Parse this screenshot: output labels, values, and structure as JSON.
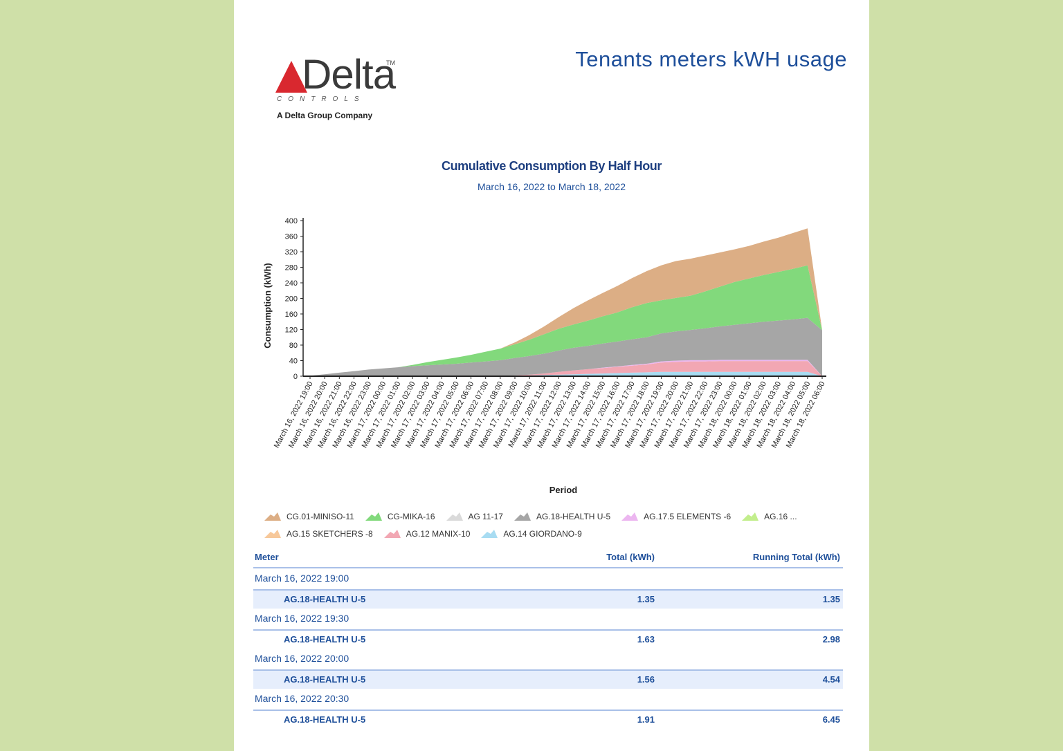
{
  "report": {
    "title": "Tenants meters kWH usage",
    "logo": {
      "word": "Delta",
      "tm": "TM",
      "sub": "CONTROLS",
      "company": "A Delta Group Company",
      "triangle_color": "#d9282f"
    }
  },
  "chart_data": {
    "type": "area",
    "stacked": true,
    "title": "Cumulative Consumption By Half Hour",
    "subtitle": "March 16, 2022 to March 18, 2022",
    "xlabel": "Period",
    "ylabel": "Consumption (kWh)",
    "ylim": [
      0,
      400
    ],
    "yticks": [
      "400",
      "360",
      "320",
      "280",
      "240",
      "200",
      "160",
      "120",
      "80",
      "40",
      "0"
    ],
    "categories": [
      "March 16, 2022 19:00",
      "March 16, 2022 20:00",
      "March 16, 2022 21:00",
      "March 16, 2022 22:00",
      "March 16, 2022 23:00",
      "March 17, 2022 00:00",
      "March 17, 2022 01:00",
      "March 17, 2022 02:00",
      "March 17, 2022 03:00",
      "March 17, 2022 04:00",
      "March 17, 2022 05:00",
      "March 17, 2022 06:00",
      "March 17, 2022 07:00",
      "March 17, 2022 08:00",
      "March 17, 2022 09:00",
      "March 17, 2022 10:00",
      "March 17, 2022 11:00",
      "March 17, 2022 12:00",
      "March 17, 2022 13:00",
      "March 17, 2022 14:00",
      "March 17, 2022 15:00",
      "March 17, 2022 16:00",
      "March 17, 2022 17:00",
      "March 17, 2022 18:00",
      "March 17, 2022 19:00",
      "March 17, 2022 20:00",
      "March 17, 2022 21:00",
      "March 17, 2022 22:00",
      "March 17, 2022 23:00",
      "March 18, 2022 00:00",
      "March 18, 2022 01:00",
      "March 18, 2022 02:00",
      "March 18, 2022 03:00",
      "March 18, 2022 04:00",
      "March 18, 2022 05:00",
      "March 18, 2022 06:00"
    ],
    "series": [
      {
        "name": "AG.14 GIORDANO-9",
        "color": "#a8dcf2",
        "values": [
          0,
          0,
          0,
          0,
          0,
          0,
          0,
          0,
          0,
          0,
          0,
          0,
          0,
          1,
          1,
          2,
          3,
          4,
          5,
          6,
          7,
          8,
          9,
          10,
          11,
          11,
          11,
          11,
          11,
          11,
          11,
          11,
          11,
          11,
          11,
          0
        ]
      },
      {
        "name": "AG.12 MANIX-10",
        "color": "#f2a7b3",
        "values": [
          0,
          0,
          0,
          0,
          0,
          0,
          0,
          0,
          0,
          0,
          0,
          0,
          0,
          0,
          1,
          2,
          4,
          7,
          10,
          12,
          14,
          16,
          18,
          20,
          24,
          26,
          27,
          27,
          28,
          28,
          28,
          28,
          28,
          28,
          28,
          0
        ]
      },
      {
        "name": "AG.15 SKETCHERS -8",
        "color": "#f7c89a",
        "values": [
          0,
          0,
          0,
          0,
          0,
          0,
          0,
          0,
          0,
          0,
          0,
          0,
          0,
          0,
          0,
          0,
          0,
          0,
          0,
          0,
          0,
          0,
          0,
          0,
          0,
          0,
          0,
          0,
          0,
          0,
          0,
          0,
          0,
          0,
          0,
          0
        ]
      },
      {
        "name": "AG.16 ...",
        "color": "#c2ee8c",
        "values": [
          0,
          0,
          0,
          0,
          0,
          0,
          0,
          0,
          0,
          0,
          0,
          0,
          0,
          0,
          0,
          0,
          0,
          0,
          0,
          0,
          0,
          0,
          0,
          0,
          0,
          0,
          0,
          0,
          0,
          0,
          0,
          0,
          0,
          0,
          0,
          0
        ]
      },
      {
        "name": "AG.17.5 ELEMENTS -6",
        "color": "#ecb6f0",
        "values": [
          0,
          0,
          0,
          0,
          0,
          0,
          0,
          0,
          0,
          0,
          0,
          0,
          0,
          0,
          0,
          0,
          0,
          0,
          0,
          0,
          1,
          1,
          2,
          2,
          3,
          3,
          3,
          3,
          3,
          3,
          3,
          3,
          3,
          3,
          3,
          0
        ]
      },
      {
        "name": "AG.18-HEALTH U-5",
        "color": "#a6a6a6",
        "values": [
          1,
          5,
          9,
          13,
          17,
          20,
          23,
          26,
          28,
          30,
          32,
          35,
          38,
          40,
          45,
          48,
          51,
          55,
          58,
          60,
          62,
          64,
          66,
          68,
          72,
          75,
          78,
          82,
          86,
          90,
          94,
          98,
          101,
          104,
          108,
          118
        ]
      },
      {
        "name": "AG 11-17",
        "color": "#dadada",
        "values": [
          0,
          0,
          0,
          0,
          0,
          0,
          0,
          0,
          0,
          0,
          0,
          0,
          0,
          0,
          0,
          0,
          0,
          0,
          0,
          0,
          0,
          0,
          0,
          0,
          0,
          0,
          0,
          0,
          0,
          0,
          0,
          0,
          0,
          0,
          0,
          0
        ]
      },
      {
        "name": "CG-MIKA-16",
        "color": "#82d97c",
        "values": [
          0,
          0,
          0,
          0,
          0,
          0,
          0,
          3,
          8,
          12,
          16,
          20,
          25,
          30,
          35,
          42,
          50,
          56,
          60,
          65,
          70,
          75,
          82,
          88,
          85,
          86,
          88,
          95,
          102,
          110,
          115,
          120,
          125,
          130,
          135,
          0
        ]
      },
      {
        "name": "CG.01-MINISO-11",
        "color": "#dcae85",
        "values": [
          0,
          0,
          0,
          0,
          0,
          0,
          0,
          0,
          0,
          0,
          0,
          0,
          0,
          0,
          5,
          12,
          20,
          30,
          42,
          52,
          60,
          68,
          75,
          82,
          90,
          95,
          95,
          92,
          88,
          84,
          84,
          86,
          88,
          92,
          95,
          0
        ]
      }
    ],
    "legend_rows": [
      [
        "CG.01-MINISO-11",
        "CG-MIKA-16",
        "AG 11-17",
        "AG.18-HEALTH U-5",
        "AG.17.5 ELEMENTS -6",
        "AG.16 ..."
      ],
      [
        "AG.15 SKETCHERS -8",
        "AG.12 MANIX-10",
        "AG.14 GIORDANO-9"
      ]
    ]
  },
  "table": {
    "headers": {
      "meter": "Meter",
      "total": "Total (kWh)",
      "running": "Running Total (kWh)"
    },
    "groups": [
      {
        "period": "March 16, 2022 19:00",
        "meter": "AG.18-HEALTH U-5",
        "total": "1.35",
        "running": "1.35"
      },
      {
        "period": "March 16, 2022 19:30",
        "meter": "AG.18-HEALTH U-5",
        "total": "1.63",
        "running": "2.98"
      },
      {
        "period": "March 16, 2022 20:00",
        "meter": "AG.18-HEALTH U-5",
        "total": "1.56",
        "running": "4.54"
      },
      {
        "period": "March 16, 2022 20:30",
        "meter": "AG.18-HEALTH U-5",
        "total": "1.91",
        "running": "6.45"
      }
    ]
  }
}
